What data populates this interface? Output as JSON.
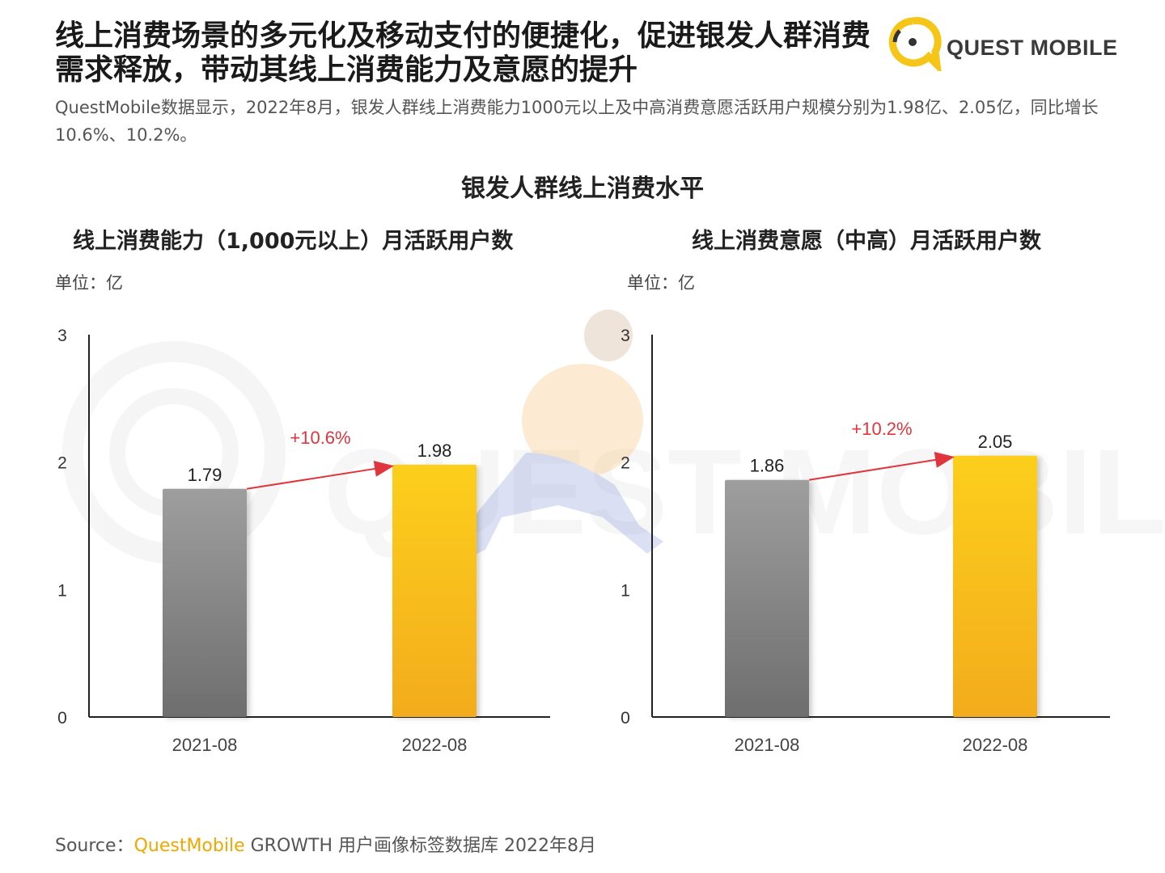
{
  "headline": "线上消费场景的多元化及移动支付的便捷化，促进银发人群消费需求释放，带动其线上消费能力及意愿的提升",
  "logo": {
    "text": "QUEST MOBILE",
    "icon": "questmobile-logo-icon"
  },
  "subtext": "QuestMobile数据显示，2022年8月，银发人群线上消费能力1000元以上及中高消费意愿活跃用户规模分别为1.98亿、2.05亿，同比增长10.6%、10.2%。",
  "main_title": "银发人群线上消费水平",
  "colors": {
    "gray_top": "#9e9e9e",
    "gray_bottom": "#6e6e6e",
    "gold_top": "#fccf1a",
    "gold_bottom": "#f3ac1f",
    "arrow": "#e0353d",
    "brand": "#f0a800"
  },
  "chart_data": [
    {
      "type": "bar",
      "title": "线上消费能力（1,000元以上）月活跃用户数",
      "unit_label": "单位：亿",
      "categories": [
        "2021-08",
        "2022-08"
      ],
      "values": [
        1.79,
        1.98
      ],
      "value_labels": [
        "1.79",
        "1.98"
      ],
      "growth_label": "+10.6%",
      "ylim": [
        0,
        3
      ],
      "yticks": [
        "0",
        "1",
        "2",
        "3"
      ],
      "grid": false
    },
    {
      "type": "bar",
      "title": "线上消费意愿（中高）月活跃用户数",
      "unit_label": "单位：亿",
      "categories": [
        "2021-08",
        "2022-08"
      ],
      "values": [
        1.86,
        2.05
      ],
      "value_labels": [
        "1.86",
        "2.05"
      ],
      "growth_label": "+10.2%",
      "ylim": [
        0,
        3
      ],
      "yticks": [
        "0",
        "1",
        "2",
        "3"
      ],
      "grid": false
    }
  ],
  "source": {
    "prefix": "Source：",
    "brand": "QuestMobile",
    "rest": " GROWTH 用户画像标签数据库 2022年8月"
  }
}
